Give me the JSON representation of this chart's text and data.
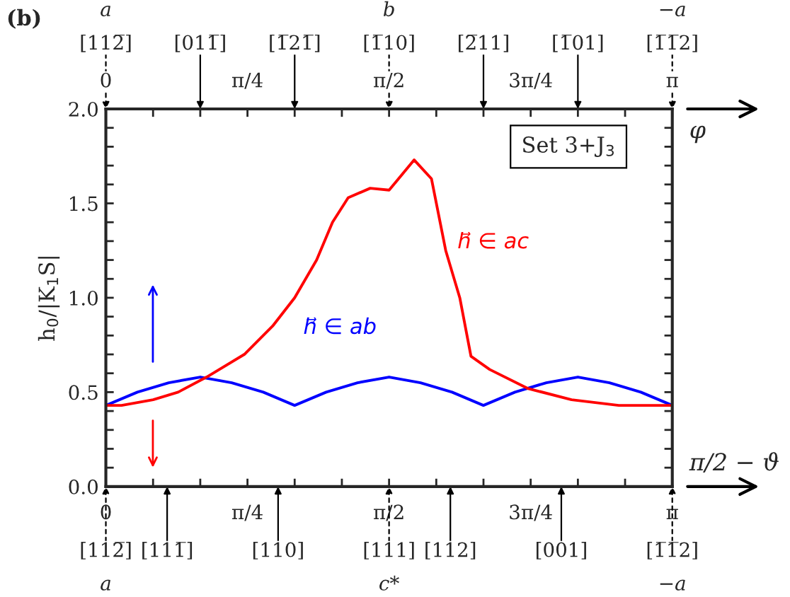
{
  "chart_data": {
    "type": "line",
    "title": "(b)",
    "xlabel": "π/2 − ϑ",
    "x2label": "φ",
    "ylabel": "h$_{0}$/|K$_{1}$S|",
    "xlim": [
      0,
      3.1416
    ],
    "x2lim": [
      0,
      3.1416
    ],
    "ylim": [
      0,
      2.0
    ],
    "xticks": [
      {
        "value": 0,
        "label": "0"
      },
      {
        "value": 0.2618,
        "label": null
      },
      {
        "value": 0.5236,
        "label": null
      },
      {
        "value": 0.7854,
        "label": "π/4"
      },
      {
        "value": 1.0472,
        "label": null
      },
      {
        "value": 1.309,
        "label": null
      },
      {
        "value": 1.5708,
        "label": "π/2"
      },
      {
        "value": 1.8326,
        "label": null
      },
      {
        "value": 2.0944,
        "label": null
      },
      {
        "value": 2.3562,
        "label": "3π/4"
      },
      {
        "value": 2.618,
        "label": null
      },
      {
        "value": 2.8798,
        "label": null
      },
      {
        "value": 3.1416,
        "label": "π"
      }
    ],
    "x2ticks": [
      {
        "value": 0,
        "label": "0"
      },
      {
        "value": 0.2618,
        "label": null
      },
      {
        "value": 0.5236,
        "label": null
      },
      {
        "value": 0.7854,
        "label": "π/4"
      },
      {
        "value": 1.0472,
        "label": null
      },
      {
        "value": 1.309,
        "label": null
      },
      {
        "value": 1.5708,
        "label": "π/2"
      },
      {
        "value": 1.8326,
        "label": null
      },
      {
        "value": 2.0944,
        "label": null
      },
      {
        "value": 2.3562,
        "label": "3π/4"
      },
      {
        "value": 2.618,
        "label": null
      },
      {
        "value": 2.8798,
        "label": null
      },
      {
        "value": 3.1416,
        "label": "π"
      }
    ],
    "yticks": [
      "0.0",
      {
        "value": 0.1,
        "label": null
      },
      {
        "value": 0.2,
        "label": null
      },
      {
        "value": 0.3,
        "label": null
      },
      {
        "value": 0.4,
        "label": null
      },
      {
        "value": 0.5,
        "label": "0.5"
      },
      {
        "value": 0.6,
        "label": null
      },
      {
        "value": 0.7,
        "label": null
      },
      {
        "value": 0.8,
        "label": null
      },
      {
        "value": 0.9,
        "label": null
      },
      {
        "value": 1.0,
        "label": "1.0"
      },
      {
        "value": 1.1,
        "label": null
      },
      {
        "value": 1.2,
        "label": null
      },
      {
        "value": 1.3,
        "label": null
      },
      {
        "value": 1.4,
        "label": null
      },
      {
        "value": 1.5,
        "label": "1.5"
      },
      {
        "value": 1.6,
        "label": null
      },
      {
        "value": 1.7,
        "label": null
      },
      {
        "value": 1.8,
        "label": null
      },
      {
        "value": 1.9,
        "label": null
      },
      {
        "value": 2.0,
        "label": "2.0"
      }
    ],
    "series": [
      {
        "name": "h⃗ ∈ ab",
        "color": "#0000ff",
        "x": [
          0,
          0.175,
          0.349,
          0.524,
          0.698,
          0.873,
          1.047,
          1.222,
          1.396,
          1.571,
          1.745,
          1.92,
          2.094,
          2.269,
          2.443,
          2.618,
          2.793,
          2.967,
          3.1416
        ],
        "values": [
          0.43,
          0.5,
          0.55,
          0.58,
          0.55,
          0.5,
          0.43,
          0.5,
          0.55,
          0.58,
          0.55,
          0.5,
          0.43,
          0.5,
          0.55,
          0.58,
          0.55,
          0.5,
          0.43
        ]
      },
      {
        "name": "h⃗ ∈ ac",
        "color": "#ff0000",
        "x": [
          0,
          0.087,
          0.262,
          0.401,
          0.559,
          0.768,
          0.925,
          1.047,
          1.169,
          1.257,
          1.344,
          1.466,
          1.571,
          1.71,
          1.806,
          1.885,
          1.963,
          2.025,
          2.129,
          2.339,
          2.583,
          2.845,
          3.1416
        ],
        "values": [
          0.43,
          0.43,
          0.46,
          0.5,
          0.58,
          0.7,
          0.85,
          1.0,
          1.2,
          1.4,
          1.53,
          1.58,
          1.57,
          1.73,
          1.63,
          1.25,
          1.0,
          0.69,
          0.62,
          0.52,
          0.46,
          0.43,
          0.43
        ]
      }
    ],
    "annotations": [
      "Set 3+J$_{3}$",
      "a",
      "b",
      "−a",
      "a",
      "c*",
      "−a",
      "[112̅]",
      "[011̅]",
      "[1̅21̅]",
      "[1̅10]",
      "[2̅11]",
      "[1̅01]",
      "[1̅1̅2]",
      "[112̅]",
      "[111̅]",
      "[110]",
      "[111]",
      "[112]",
      "[001]",
      "[1̅1̅2]"
    ]
  }
}
